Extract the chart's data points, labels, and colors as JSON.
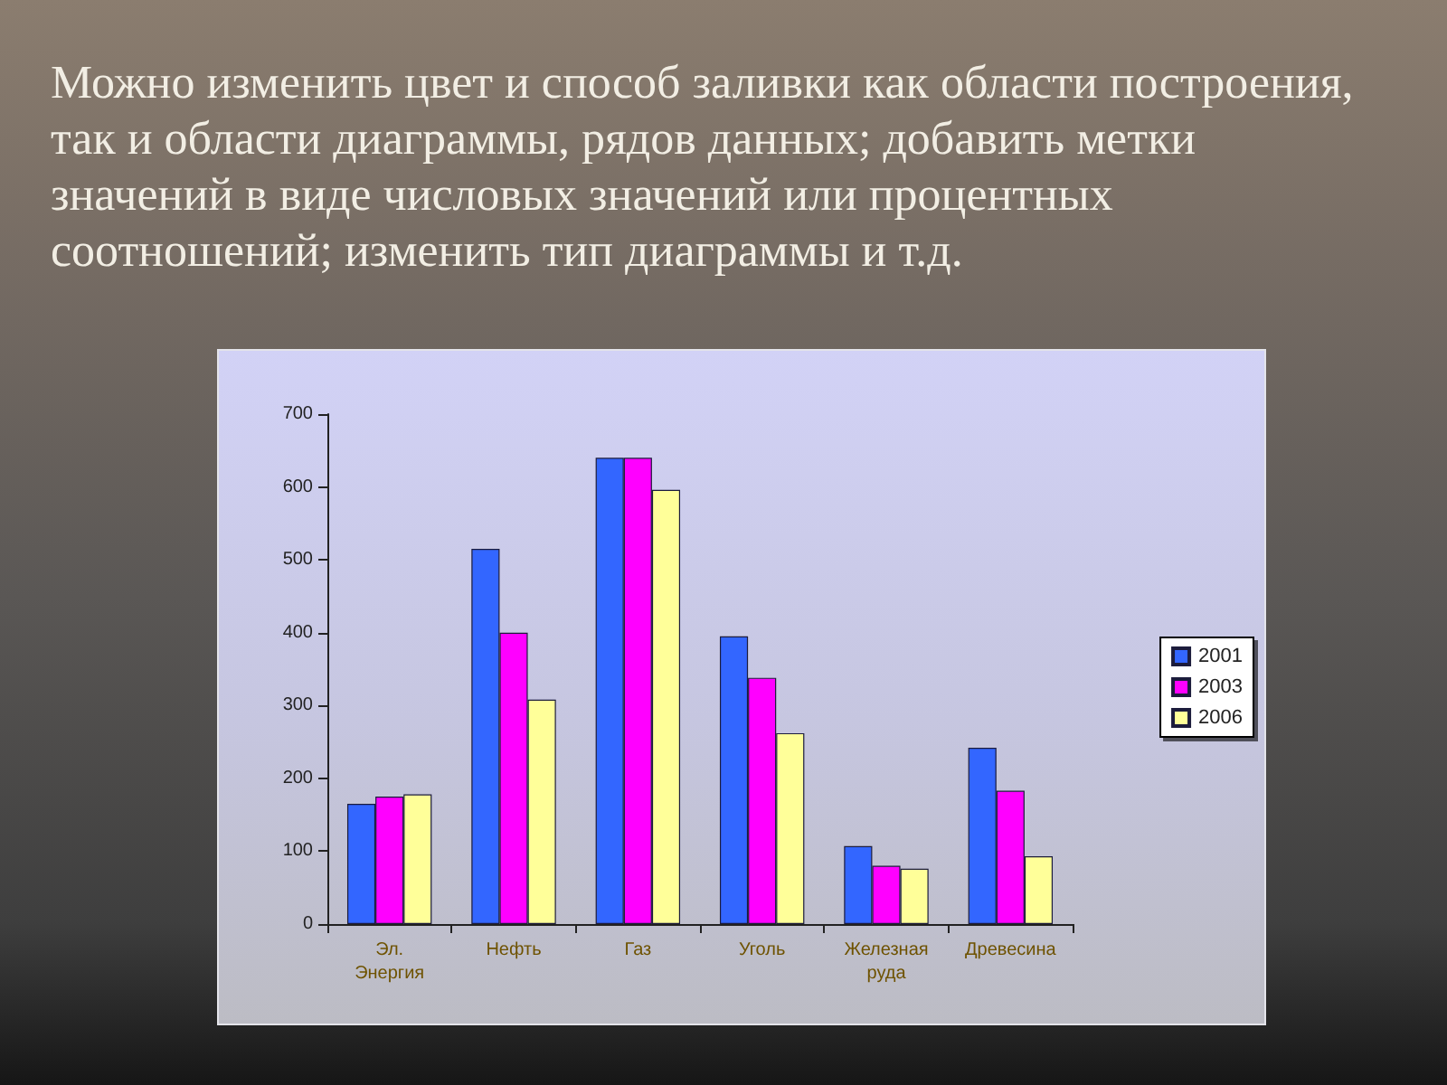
{
  "chart_data": {
    "type": "bar",
    "title": "Можно изменить цвет и способ заливки как области построения, так и области диаграммы, рядов данных; добавить метки значений в виде числовых значений или процентных соотношений; изменить тип диаграммы и т.д.",
    "categories": [
      "Эл. Энергия",
      "Нефть",
      "Газ",
      "Уголь",
      "Железная руда",
      "Древесина"
    ],
    "series": [
      {
        "name": "2001",
        "color": "#3366ff",
        "values": [
          165,
          515,
          640,
          395,
          107,
          242
        ]
      },
      {
        "name": "2003",
        "color": "#ff00ff",
        "values": [
          175,
          400,
          640,
          338,
          80,
          183
        ]
      },
      {
        "name": "2006",
        "color": "#ffff99",
        "values": [
          178,
          308,
          596,
          262,
          76,
          93
        ]
      }
    ],
    "ylim": [
      0,
      700
    ],
    "yticks": [
      0,
      100,
      200,
      300,
      400,
      500,
      600,
      700
    ],
    "legend": "right"
  }
}
